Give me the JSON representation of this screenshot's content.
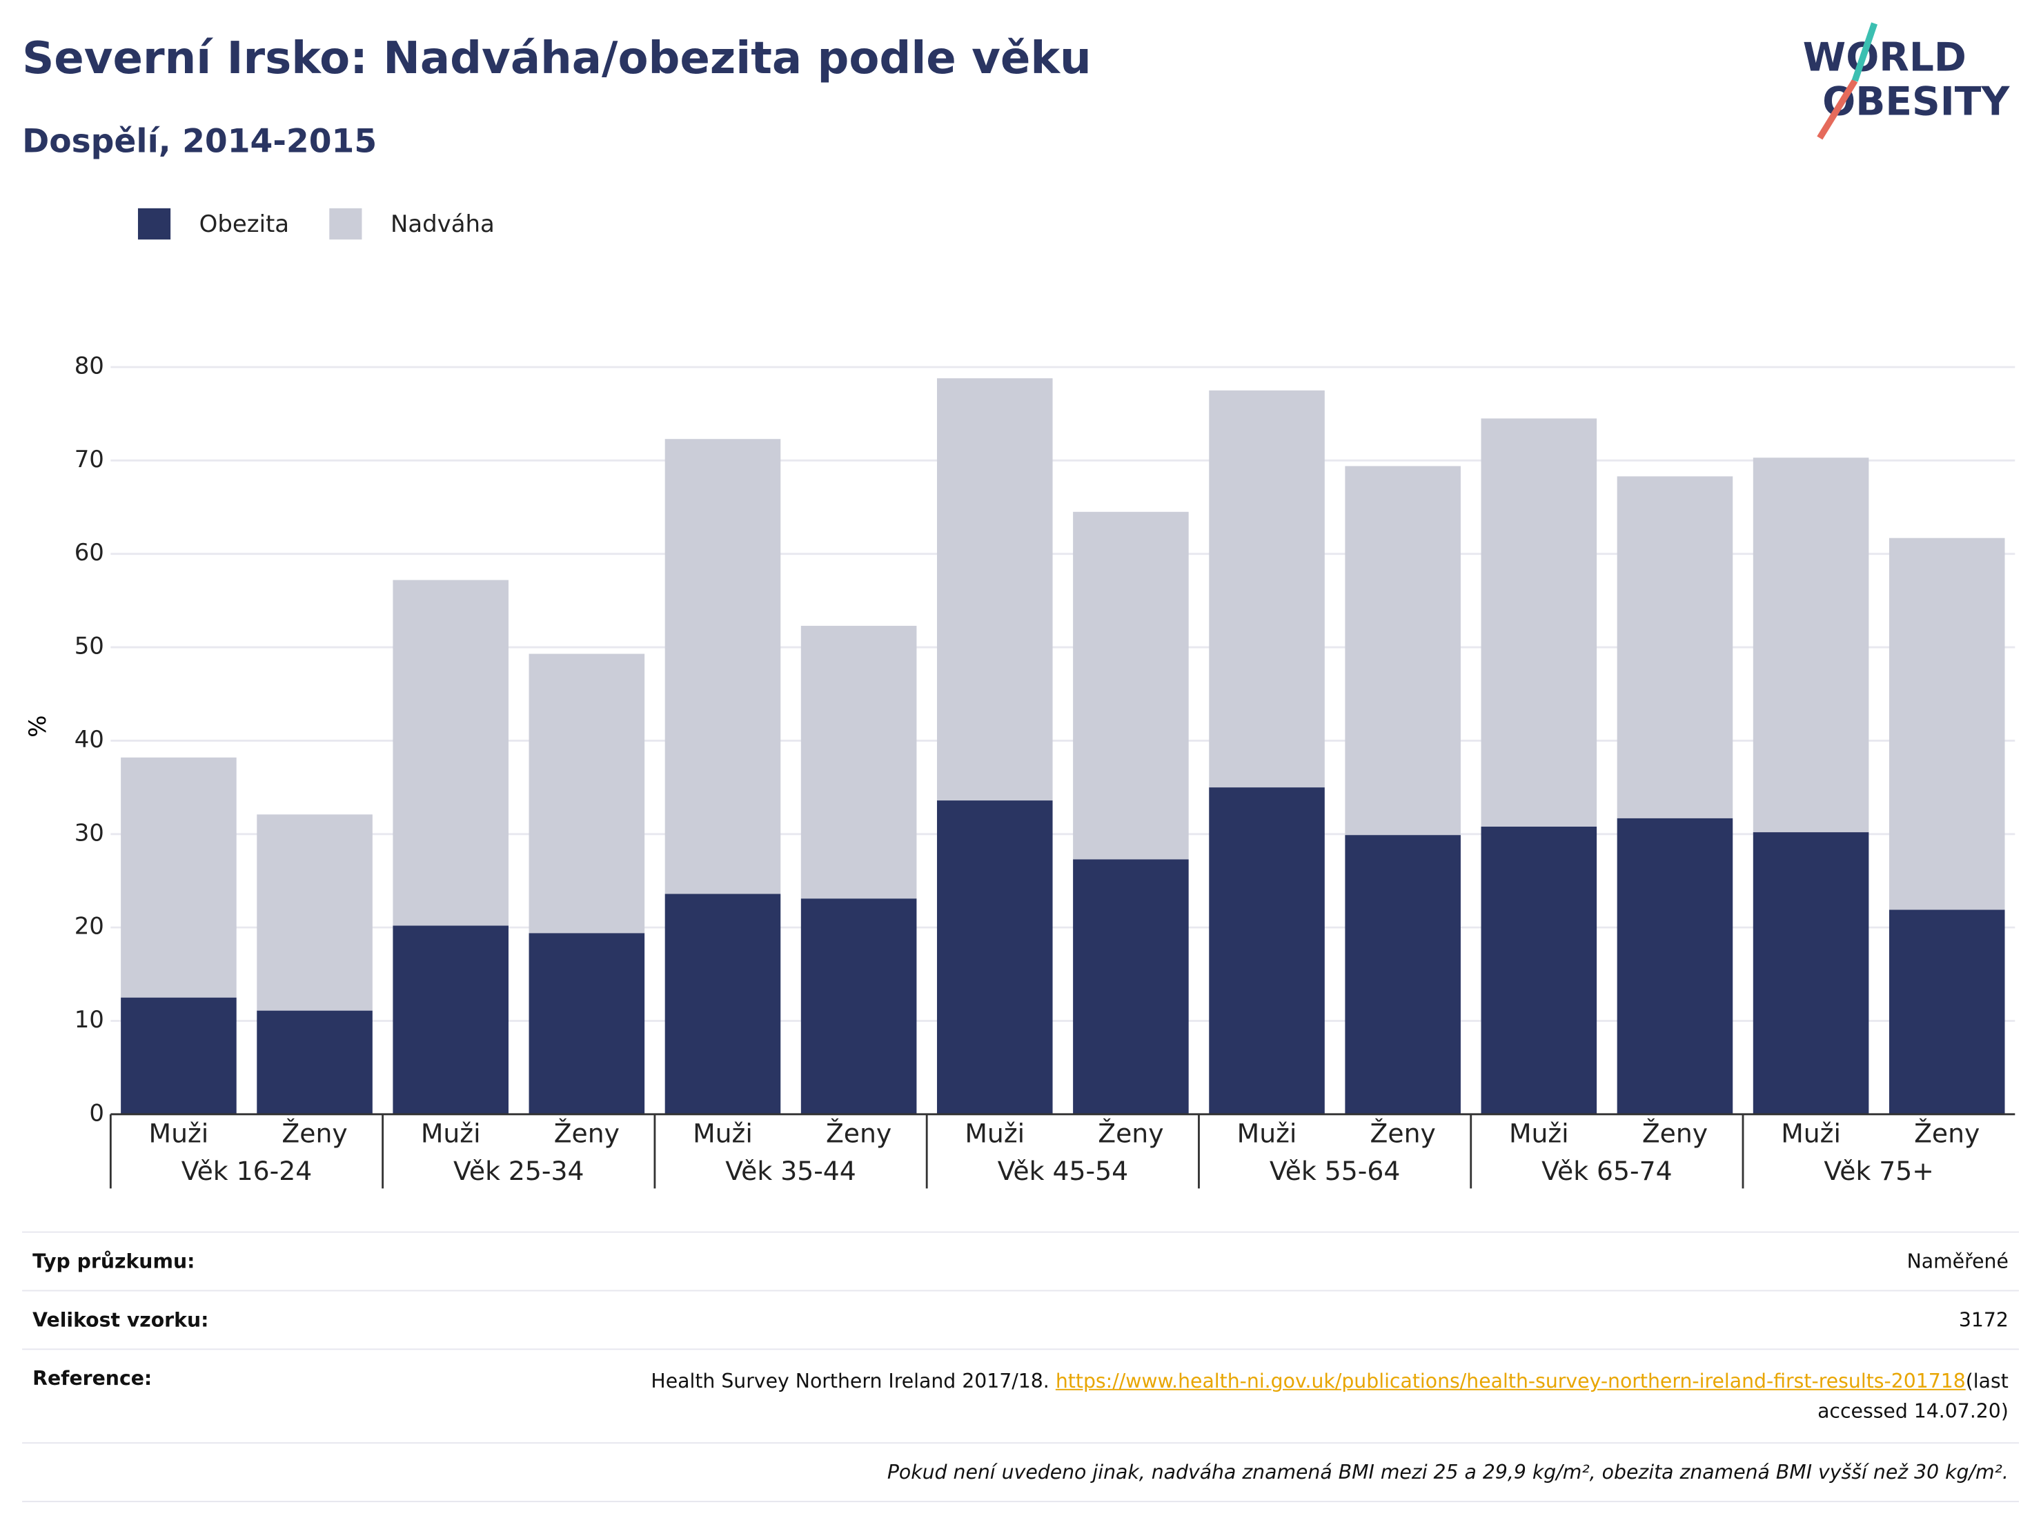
{
  "chart_data": {
    "type": "stacked_bar",
    "title": "Severní Irsko: Nadváha/obezita podle věku",
    "subtitle": "Dospělí, 2014-2015",
    "logo": [
      "WORLD",
      "OBESITY"
    ],
    "y_label": "%",
    "categories": [
      "Muži",
      "Ženy",
      "Muži",
      "Ženy",
      "Muži",
      "Ženy",
      "Muži",
      "Ženy",
      "Muži",
      "Ženy",
      "Muži",
      "Ženy",
      "Muži",
      "Ženy"
    ],
    "groups": [
      "Věk 16-24",
      "Věk 25-34",
      "Věk 35-44",
      "Věk 45-54",
      "Věk 55-64",
      "Věk 65-74",
      "Věk 75+"
    ],
    "series": [
      {
        "name": "Obezita",
        "color": "#2a3562",
        "values": [
          12.5,
          11.1,
          20.2,
          19.4,
          23.6,
          23.1,
          33.6,
          27.3,
          35.0,
          29.9,
          30.8,
          31.7,
          30.2,
          21.9
        ]
      },
      {
        "name": "Nadváha",
        "color": "#cbcdd8",
        "values": [
          25.7,
          21.0,
          37.0,
          29.9,
          48.7,
          29.2,
          45.2,
          37.2,
          42.5,
          39.5,
          43.7,
          36.6,
          40.1,
          39.8
        ]
      }
    ],
    "ylim": [
      0,
      80
    ],
    "yticks": [
      0,
      10,
      20,
      30,
      40,
      50,
      60,
      70,
      80
    ],
    "grid": true,
    "legend": "top-left"
  },
  "footer": {
    "rows": [
      {
        "label": "Typ průzkumu:",
        "value": "Naměřené"
      },
      {
        "label": "Velikost vzorku:",
        "value": "3172"
      }
    ],
    "reference": {
      "label": "Reference:",
      "text": "Health Survey Northern Ireland 2017/18.",
      "url": "https://www.health-ni.gov.uk/publications/health-survey-northern-ireland-first-results-201718",
      "note": "(last accessed 14.07.20)"
    },
    "note": "Pokud není uvedeno jinak, nadváha znamená BMI mezi 25 a 29,9 kg/m², obezita znamená BMI vyšší než 30 kg/m²."
  }
}
